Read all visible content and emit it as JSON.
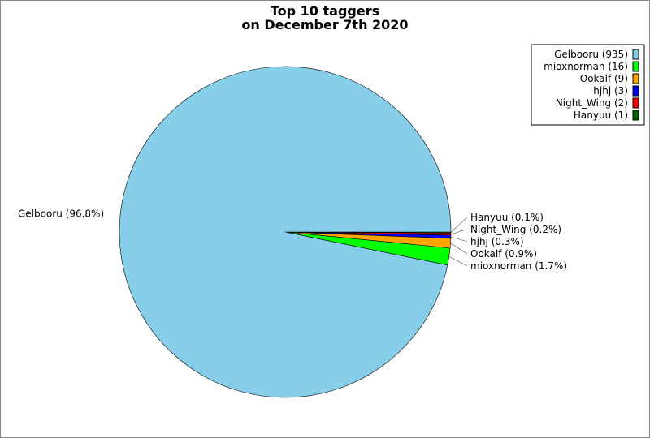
{
  "chart_data": {
    "type": "pie",
    "title": [
      "Top 10 taggers",
      "on December 7th 2020"
    ],
    "categories": [
      "Gelbooru",
      "mioxnorman",
      "Ookalf",
      "hjhj",
      "Night_Wing",
      "Hanyuu"
    ],
    "values": [
      935,
      16,
      9,
      3,
      2,
      1
    ],
    "slice_labels": [
      "Gelbooru (96.8%)",
      "mioxnorman (1.7%)",
      "Ookalf (0.9%)",
      "hjhj (0.3%)",
      "Night_Wing (0.2%)",
      "Hanyuu (0.1%)"
    ],
    "legend_entries": [
      "Gelbooru (935)",
      "mioxnorman (16)",
      "Ookalf (9)",
      "hjhj (3)",
      "Night_Wing (2)",
      "Hanyuu (1)"
    ],
    "colors": [
      "#87ceeb",
      "#00ff00",
      "#ffa500",
      "#0000ff",
      "#ff0000",
      "#006400"
    ],
    "legend_placement": "top-right"
  }
}
